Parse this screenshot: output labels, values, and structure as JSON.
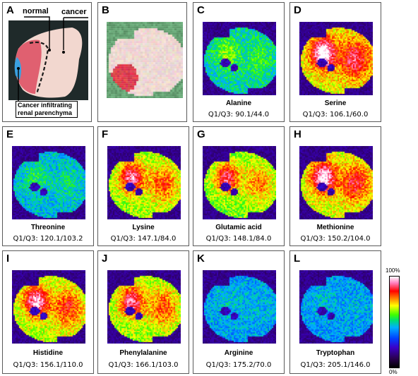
{
  "panels": [
    {
      "id": "A",
      "letter": "A",
      "kind": "photo-annotated"
    },
    {
      "id": "B",
      "letter": "B",
      "kind": "photo-pixelated"
    },
    {
      "id": "C",
      "letter": "C",
      "kind": "heatmap",
      "name": "Alanine",
      "q": "Q1/Q3: 90.1/44.0",
      "intensity": 0.3
    },
    {
      "id": "D",
      "letter": "D",
      "kind": "heatmap",
      "name": "Serine",
      "q": "Q1/Q3: 106.1/60.0",
      "intensity": 0.85
    },
    {
      "id": "E",
      "letter": "E",
      "kind": "heatmap",
      "name": "Threonine",
      "q": "Q1/Q3: 120.1/103.2",
      "intensity": 0.2
    },
    {
      "id": "F",
      "letter": "F",
      "kind": "heatmap",
      "name": "Lysine",
      "q": "Q1/Q3: 147.1/84.0",
      "intensity": 0.7
    },
    {
      "id": "G",
      "letter": "G",
      "kind": "heatmap",
      "name": "Glutamic acid",
      "q": "Q1/Q3: 148.1/84.0",
      "intensity": 0.65
    },
    {
      "id": "H",
      "letter": "H",
      "kind": "heatmap",
      "name": "Methionine",
      "q": "Q1/Q3: 150.2/104.0",
      "intensity": 0.8
    },
    {
      "id": "I",
      "letter": "I",
      "kind": "heatmap",
      "name": "Histidine",
      "q": "Q1/Q3: 156.1/110.0",
      "intensity": 0.75
    },
    {
      "id": "J",
      "letter": "J",
      "kind": "heatmap",
      "name": "Phenylalanine",
      "q": "Q1/Q3: 166.1/103.0",
      "intensity": 0.7
    },
    {
      "id": "K",
      "letter": "K",
      "kind": "heatmap",
      "name": "Arginine",
      "q": "Q1/Q3: 175.2/70.0",
      "intensity": 0.12
    },
    {
      "id": "L",
      "letter": "L",
      "kind": "heatmap",
      "name": "Tryptophan",
      "q": "Q1/Q3: 205.1/146.0",
      "intensity": 0.1
    }
  ],
  "annotations": {
    "normal": "normal",
    "cancer": "cancer",
    "infiltrating": "Cancer infiltrating renal parenchyma"
  },
  "colorbar": {
    "top_label": "100%",
    "bottom_label": "0%"
  }
}
